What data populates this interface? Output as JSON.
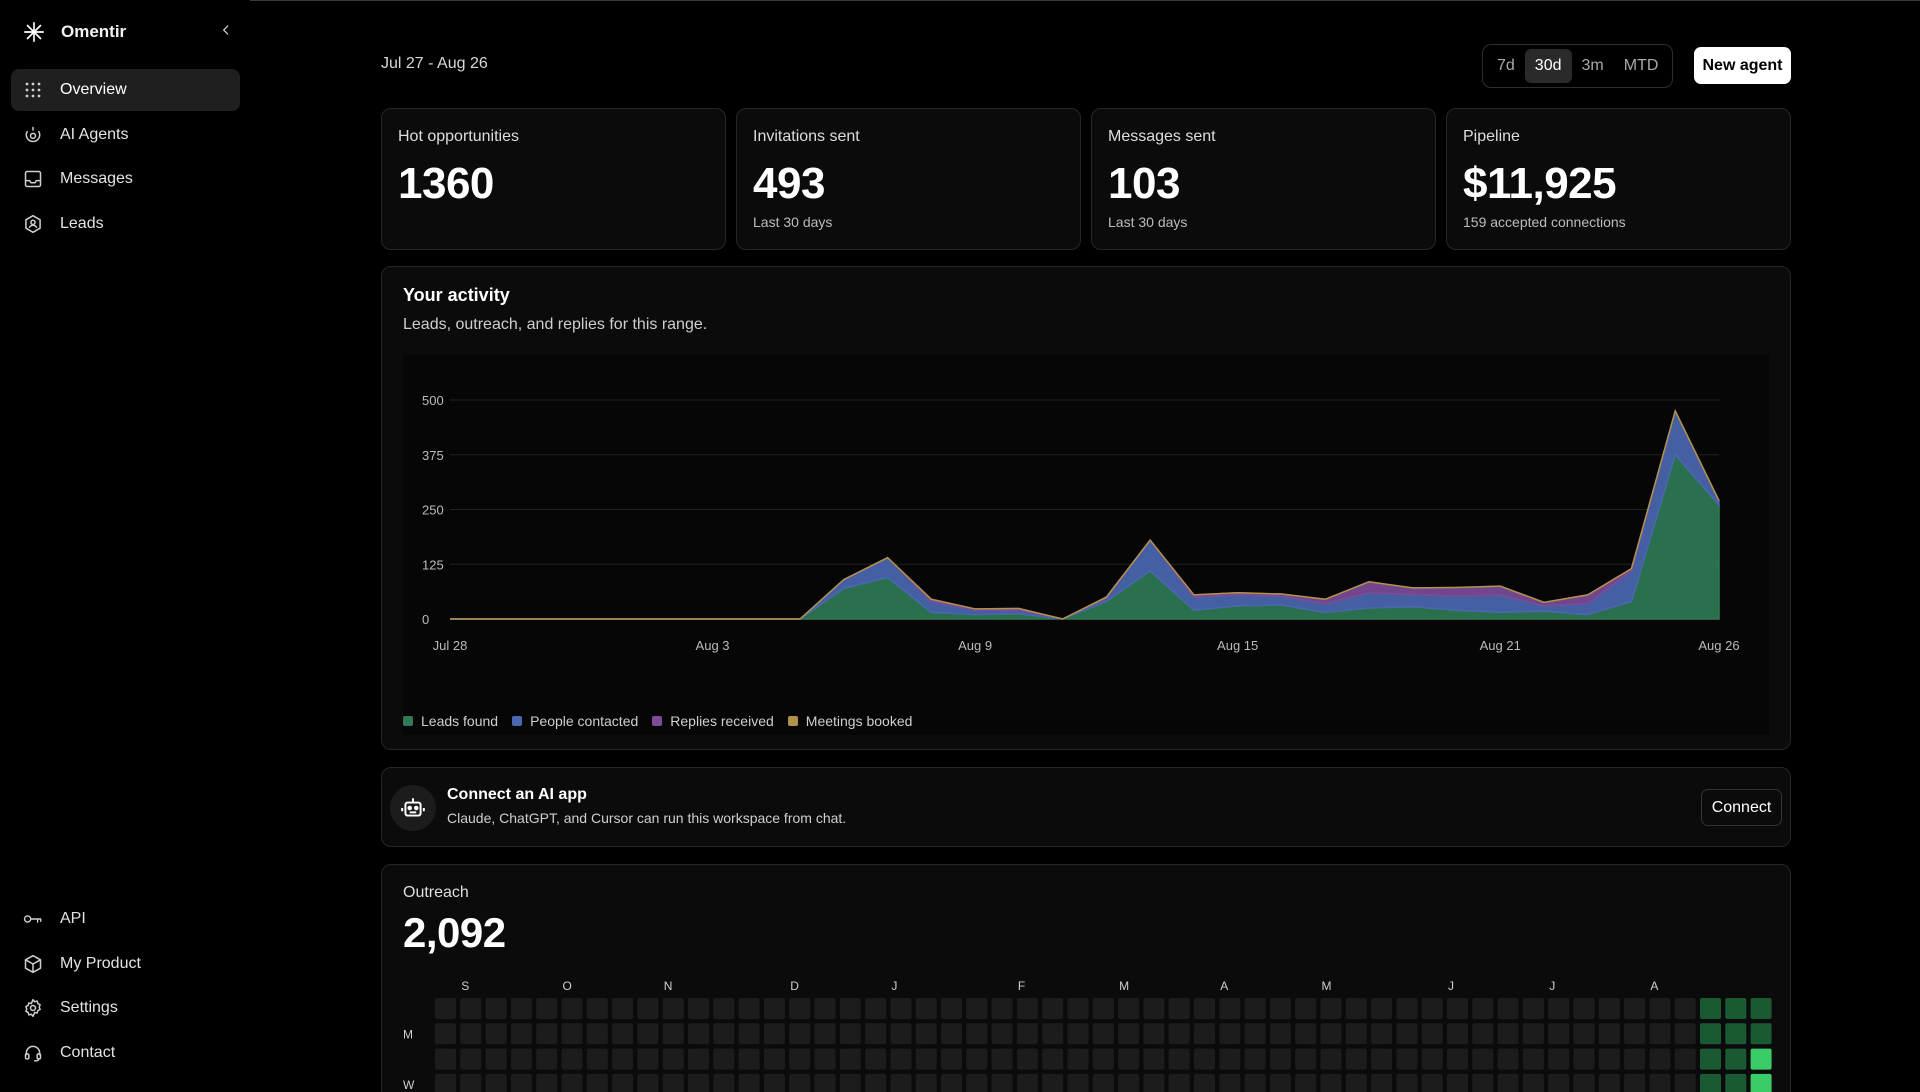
{
  "brand": {
    "name": "Omentir",
    "icon": "asterisk-logo-icon"
  },
  "sidebar": {
    "collapse_icon": "chevron-left-icon",
    "items": [
      {
        "label": "Overview",
        "icon": "grid-dots-icon",
        "active": true
      },
      {
        "label": "AI Agents",
        "icon": "agent-icon",
        "active": false
      },
      {
        "label": "Messages",
        "icon": "inbox-icon",
        "active": false
      },
      {
        "label": "Leads",
        "icon": "leads-icon",
        "active": false
      }
    ],
    "bottom_items": [
      {
        "label": "API",
        "icon": "key-icon"
      },
      {
        "label": "My Product",
        "icon": "box-icon"
      },
      {
        "label": "Settings",
        "icon": "gear-icon"
      },
      {
        "label": "Contact",
        "icon": "headset-icon"
      }
    ]
  },
  "header": {
    "date_range": "Jul 27 - Aug 26",
    "ranges": [
      "7d",
      "30d",
      "3m",
      "MTD"
    ],
    "active_range": "30d",
    "new_agent_label": "New agent"
  },
  "stats": [
    {
      "title": "Hot opportunities",
      "value": "1360",
      "sub": ""
    },
    {
      "title": "Invitations sent",
      "value": "493",
      "sub": "Last 30 days"
    },
    {
      "title": "Messages sent",
      "value": "103",
      "sub": "Last 30 days"
    },
    {
      "title": "Pipeline",
      "value": "$11,925",
      "sub": "159 accepted connections"
    }
  ],
  "activity": {
    "title": "Your activity",
    "subtitle": "Leads, outreach, and replies for this range."
  },
  "chart_data": {
    "type": "area",
    "x": [
      "Jul 28",
      "Jul 29",
      "Jul 30",
      "Jul 31",
      "Aug 1",
      "Aug 2",
      "Aug 3",
      "Aug 4",
      "Aug 5",
      "Aug 6",
      "Aug 7",
      "Aug 8",
      "Aug 9",
      "Aug 10",
      "Aug 11",
      "Aug 12",
      "Aug 13",
      "Aug 14",
      "Aug 15",
      "Aug 16",
      "Aug 17",
      "Aug 18",
      "Aug 19",
      "Aug 20",
      "Aug 21",
      "Aug 22",
      "Aug 23",
      "Aug 24",
      "Aug 25",
      "Aug 26"
    ],
    "x_ticks": [
      "Jul 28",
      "Aug 3",
      "Aug 9",
      "Aug 15",
      "Aug 21",
      "Aug 26"
    ],
    "ylim": [
      0,
      500
    ],
    "y_ticks": [
      0,
      125,
      250,
      375,
      500
    ],
    "grid": true,
    "legend_position": "bottom-left",
    "series": [
      {
        "name": "Leads found",
        "color": "#2f7a55",
        "values": [
          0,
          0,
          0,
          0,
          0,
          0,
          0,
          0,
          0,
          70,
          95,
          15,
          10,
          12,
          0,
          40,
          110,
          20,
          30,
          32,
          15,
          25,
          28,
          20,
          15,
          18,
          10,
          40,
          375,
          260
        ]
      },
      {
        "name": "People contacted",
        "color": "#4a67b0",
        "values": [
          0,
          0,
          0,
          0,
          0,
          0,
          0,
          0,
          0,
          20,
          45,
          25,
          10,
          8,
          0,
          8,
          70,
          30,
          25,
          20,
          20,
          35,
          28,
          32,
          40,
          12,
          25,
          70,
          100,
          10
        ]
      },
      {
        "name": "Replies received",
        "color": "#7c4c98",
        "values": [
          0,
          0,
          0,
          0,
          0,
          0,
          0,
          0,
          0,
          0,
          0,
          5,
          3,
          4,
          0,
          2,
          0,
          5,
          5,
          5,
          10,
          25,
          15,
          20,
          20,
          8,
          20,
          5,
          0,
          0
        ]
      },
      {
        "name": "Meetings booked",
        "color": "#b0924a",
        "values": [
          0,
          0,
          0,
          0,
          0,
          0,
          0,
          0,
          0,
          0,
          0,
          0,
          0,
          0,
          0,
          0,
          0,
          0,
          0,
          0,
          0,
          0,
          0,
          0,
          0,
          0,
          0,
          0,
          0,
          0
        ]
      }
    ]
  },
  "connect": {
    "icon": "robot-icon",
    "title": "Connect an AI app",
    "subtitle": "Claude, ChatGPT, and Cursor can run this workspace from chat.",
    "button_label": "Connect"
  },
  "outreach": {
    "title": "Outreach",
    "value": "2,092",
    "month_labels": [
      "S",
      "O",
      "N",
      "D",
      "J",
      "F",
      "M",
      "A",
      "M",
      "J",
      "J",
      "A"
    ],
    "day_labels": [
      "M",
      "W"
    ],
    "empty_color": "#1c1c1c",
    "active_color": "#1a5a33",
    "bright_color": "#3ccc67"
  }
}
